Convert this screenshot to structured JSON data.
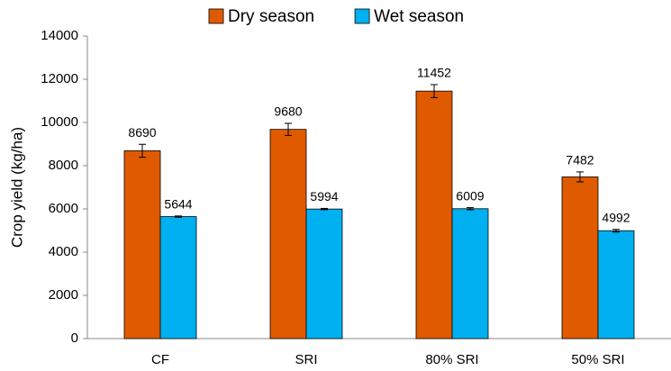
{
  "chart_data": {
    "type": "bar",
    "y_label": "Crop yield (kg/ha)",
    "categories": [
      "CF",
      "SRI",
      "80% SRI",
      "50% SRI"
    ],
    "series": [
      {
        "name": "Dry season",
        "color": "#e05a00",
        "values": [
          8690,
          9680,
          11452,
          7482
        ],
        "errors": [
          300,
          280,
          300,
          230
        ]
      },
      {
        "name": "Wet season",
        "color": "#00b0f0",
        "values": [
          5644,
          5994,
          6009,
          4992
        ],
        "errors": [
          30,
          30,
          50,
          60
        ]
      }
    ],
    "ylim": [
      0,
      14000
    ],
    "yticks": [
      0,
      2000,
      4000,
      6000,
      8000,
      10000,
      12000,
      14000
    ],
    "grid": false,
    "legend": "top"
  }
}
